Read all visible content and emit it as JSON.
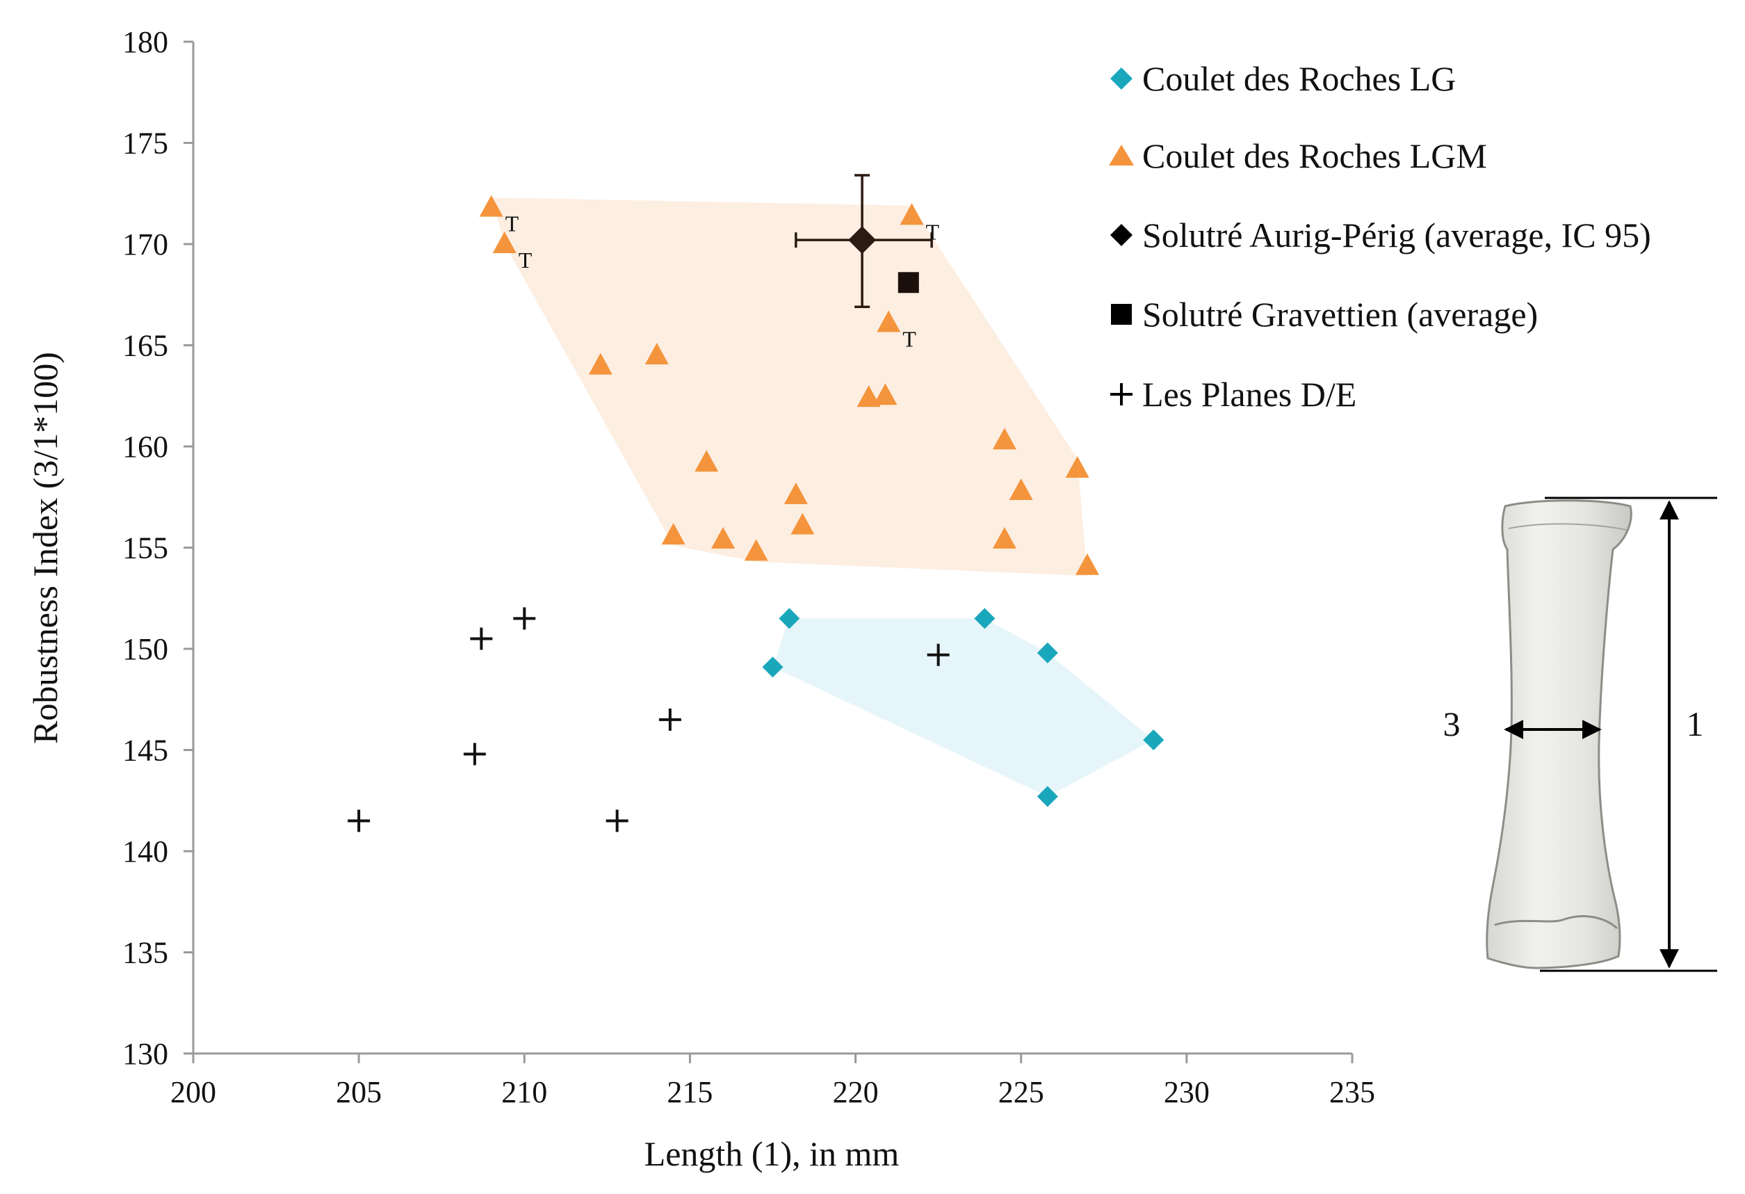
{
  "chart_data": {
    "type": "scatter",
    "title": "",
    "xlabel": "Length (1), in mm",
    "ylabel": "Robustness Index (3/1*100)",
    "xlim": [
      200,
      235
    ],
    "ylim": [
      130,
      180
    ],
    "xticks": [
      200,
      205,
      210,
      215,
      220,
      225,
      230,
      235
    ],
    "yticks": [
      130,
      135,
      140,
      145,
      150,
      155,
      160,
      165,
      170,
      175,
      180
    ],
    "grid": false,
    "legend_position": "top-right",
    "series": [
      {
        "name": "Coulet des Roches LG",
        "marker": "diamond",
        "color": "#1aa7bc",
        "hull_color": "#e6f5f9",
        "points": [
          {
            "x": 218.0,
            "y": 151.5
          },
          {
            "x": 217.5,
            "y": 149.1
          },
          {
            "x": 223.9,
            "y": 151.5
          },
          {
            "x": 225.8,
            "y": 149.8
          },
          {
            "x": 229.0,
            "y": 145.5
          },
          {
            "x": 225.8,
            "y": 142.7
          }
        ],
        "hull": [
          {
            "x": 217.5,
            "y": 149.1
          },
          {
            "x": 218.0,
            "y": 151.5
          },
          {
            "x": 223.9,
            "y": 151.5
          },
          {
            "x": 225.8,
            "y": 149.8
          },
          {
            "x": 229.0,
            "y": 145.5
          },
          {
            "x": 225.8,
            "y": 142.7
          }
        ]
      },
      {
        "name": "Coulet des Roches LGM",
        "marker": "triangle",
        "color": "#f4943c",
        "hull_color": "#fdeee2",
        "points": [
          {
            "x": 209.0,
            "y": 171.8,
            "tag": "T"
          },
          {
            "x": 209.4,
            "y": 170.0,
            "tag": "T"
          },
          {
            "x": 221.7,
            "y": 171.4,
            "tag": "T"
          },
          {
            "x": 221.0,
            "y": 166.1,
            "tag": "T"
          },
          {
            "x": 212.3,
            "y": 164.0
          },
          {
            "x": 214.0,
            "y": 164.5
          },
          {
            "x": 220.4,
            "y": 162.4
          },
          {
            "x": 220.9,
            "y": 162.5
          },
          {
            "x": 215.5,
            "y": 159.2
          },
          {
            "x": 218.2,
            "y": 157.6
          },
          {
            "x": 218.4,
            "y": 156.1
          },
          {
            "x": 214.5,
            "y": 155.6
          },
          {
            "x": 216.0,
            "y": 155.4
          },
          {
            "x": 217.0,
            "y": 154.8
          },
          {
            "x": 224.5,
            "y": 160.3
          },
          {
            "x": 225.0,
            "y": 157.8
          },
          {
            "x": 224.5,
            "y": 155.4
          },
          {
            "x": 226.7,
            "y": 158.9
          },
          {
            "x": 227.0,
            "y": 154.1
          }
        ],
        "hull": [
          {
            "x": 209.0,
            "y": 172.3
          },
          {
            "x": 221.7,
            "y": 171.9
          },
          {
            "x": 226.7,
            "y": 159.4
          },
          {
            "x": 227.0,
            "y": 153.6
          },
          {
            "x": 217.0,
            "y": 154.3
          },
          {
            "x": 214.5,
            "y": 155.1
          },
          {
            "x": 209.4,
            "y": 170.0
          }
        ]
      },
      {
        "name": "Solutré Aurig-Périg (average, IC 95)",
        "marker": "diamond",
        "color": "#2b1a12",
        "points": [
          {
            "x": 220.2,
            "y": 170.2,
            "x_err": [
              218.2,
              222.3
            ],
            "y_err": [
              166.9,
              173.4
            ]
          }
        ]
      },
      {
        "name": "Solutré Gravettien (average)",
        "marker": "square",
        "color": "#1a0f0a",
        "points": [
          {
            "x": 221.6,
            "y": 168.1
          }
        ]
      },
      {
        "name": "Les Planes D/E",
        "marker": "plus",
        "color": "#111111",
        "points": [
          {
            "x": 208.7,
            "y": 150.5
          },
          {
            "x": 210.0,
            "y": 151.5
          },
          {
            "x": 214.4,
            "y": 146.5
          },
          {
            "x": 208.5,
            "y": 144.8
          },
          {
            "x": 205.0,
            "y": 141.5
          },
          {
            "x": 212.8,
            "y": 141.5
          },
          {
            "x": 222.5,
            "y": 149.7
          }
        ]
      }
    ]
  },
  "bone_diagram": {
    "length_label": "1",
    "width_label": "3",
    "length_marker_text": "1",
    "width_marker_text": "3"
  }
}
